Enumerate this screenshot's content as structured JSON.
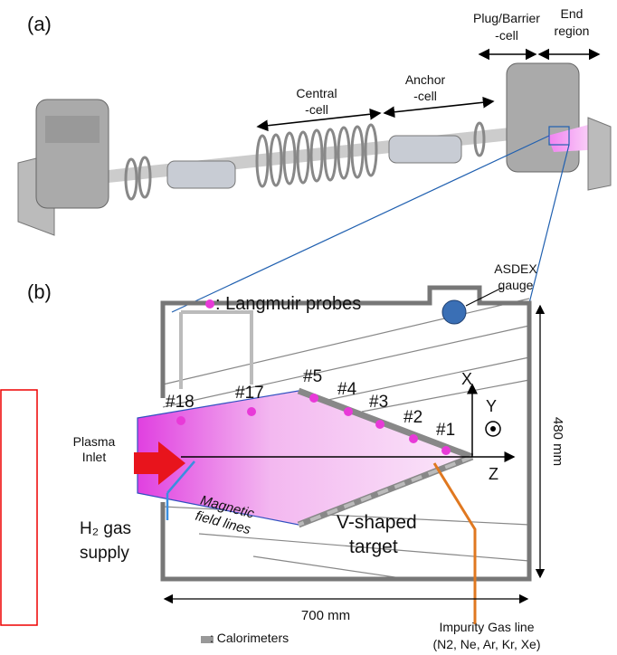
{
  "panel_a": {
    "label": "(a)",
    "annotations": {
      "plug_barrier": [
        "Plug/Barrier",
        "-cell"
      ],
      "end_region": [
        "End",
        "region"
      ],
      "central": [
        "Central",
        "-cell"
      ],
      "anchor": [
        "Anchor",
        "-cell"
      ]
    }
  },
  "panel_b": {
    "label": "(b)",
    "legend_probes": ": Langmuir probes",
    "gauge": [
      "ASDEX",
      "gauge"
    ],
    "probes": [
      "#18",
      "#17",
      "#5",
      "#4",
      "#3",
      "#2",
      "#1"
    ],
    "axes": {
      "x": "X",
      "y": "Y",
      "z": "Z"
    },
    "height_dim": "480 mm",
    "width_dim": "700 mm",
    "plasma_inlet": [
      "Plasma",
      "Inlet"
    ],
    "gas_supply": [
      "H₂ gas",
      "supply"
    ],
    "field_lines": [
      "Magnetic",
      "field lines"
    ],
    "target": [
      "V-shaped",
      "target"
    ],
    "legend_calorimeters": ": Calorimeters",
    "impurity": [
      "Impurity Gas line",
      "(N2, Ne, Ar, Kr, Xe)"
    ]
  }
}
